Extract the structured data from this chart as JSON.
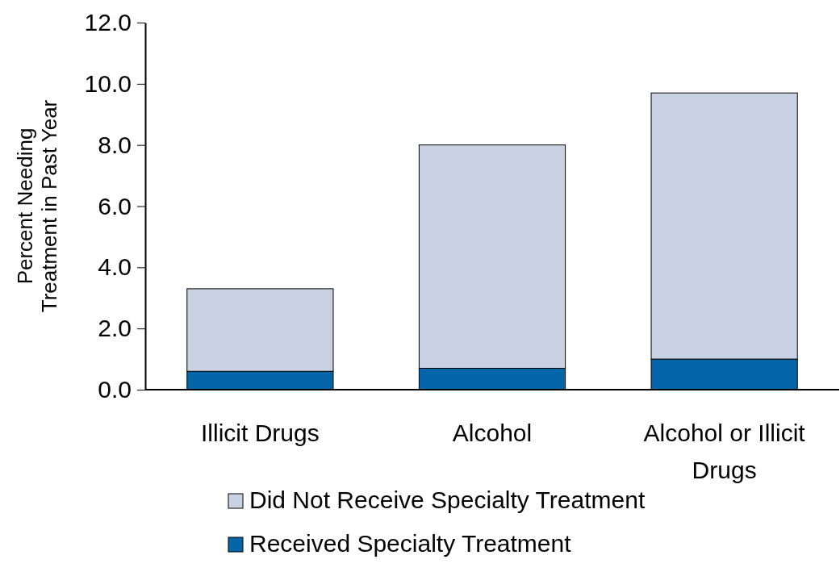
{
  "chart_data": {
    "type": "bar",
    "stacked": true,
    "ylabel": "Percent Needing Treatment in Past Year",
    "categories": [
      "Illicit Drugs",
      "Alcohol",
      "Alcohol or Illicit Drugs"
    ],
    "series": [
      {
        "name": "Received Specialty Treatment",
        "color": "#0465a8",
        "values": [
          0.6,
          0.7,
          1.0
        ]
      },
      {
        "name": "Did Not Receive Specialty Treatment",
        "color": "#c9d2e3",
        "values": [
          2.7,
          7.3,
          8.7
        ]
      }
    ],
    "ylim": [
      0,
      12
    ],
    "yticks": [
      {
        "value": 0,
        "label": "0.0"
      },
      {
        "value": 2,
        "label": "2.0"
      },
      {
        "value": 4,
        "label": "4.0"
      },
      {
        "value": 6,
        "label": "6.0"
      },
      {
        "value": 8,
        "label": "8.0"
      },
      {
        "value": 10,
        "label": "10.0"
      },
      {
        "value": 12,
        "label": "12.0"
      }
    ],
    "grid": false,
    "legend": "bottom"
  }
}
